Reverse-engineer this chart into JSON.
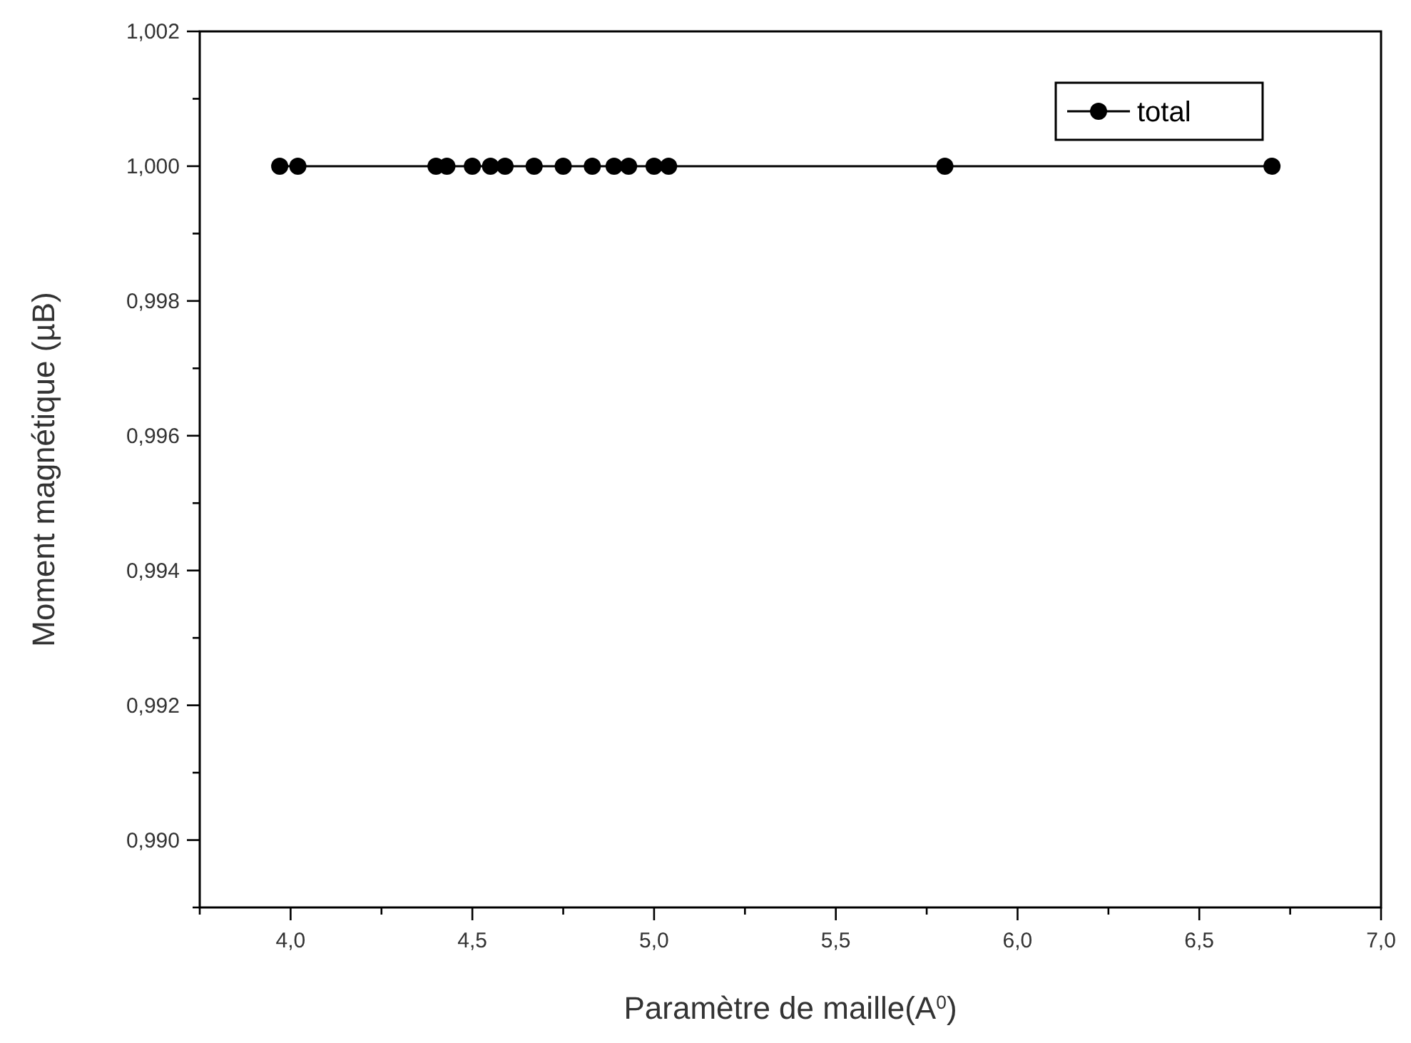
{
  "chart_data": {
    "type": "line",
    "xlabel": "Paramètre de maille(A$^{0}$)",
    "ylabel": "Moment magnétique (µB)",
    "x": [
      3.97,
      4.02,
      4.4,
      4.43,
      4.5,
      4.55,
      4.59,
      4.67,
      4.75,
      4.83,
      4.89,
      4.93,
      5.0,
      5.04,
      5.8,
      6.7
    ],
    "series": [
      {
        "name": "total",
        "color": "#000000",
        "values": [
          1,
          1,
          1,
          1,
          1,
          1,
          1,
          1,
          1,
          1,
          1,
          1,
          1,
          1,
          1,
          1
        ]
      }
    ],
    "xlim": [
      3.75,
      7.0
    ],
    "xticks": [
      {
        "value": 3.75,
        "label": null
      },
      {
        "value": 4.0,
        "label": "4,0"
      },
      {
        "value": 4.25,
        "label": null
      },
      {
        "value": 4.5,
        "label": "4,5"
      },
      {
        "value": 4.75,
        "label": null
      },
      {
        "value": 5.0,
        "label": "5,0"
      },
      {
        "value": 5.25,
        "label": null
      },
      {
        "value": 5.5,
        "label": "5,5"
      },
      {
        "value": 5.75,
        "label": null
      },
      {
        "value": 6.0,
        "label": "6,0"
      },
      {
        "value": 6.25,
        "label": null
      },
      {
        "value": 6.5,
        "label": "6,5"
      },
      {
        "value": 6.75,
        "label": null
      },
      {
        "value": 7.0,
        "label": "7,0"
      }
    ],
    "ylim": [
      0.989,
      1.002
    ],
    "yticks": [
      {
        "value": 0.989,
        "label": null
      },
      {
        "value": 0.99,
        "label": "0,990"
      },
      {
        "value": 0.991,
        "label": null
      },
      {
        "value": 0.992,
        "label": "0,992"
      },
      {
        "value": 0.993,
        "label": null
      },
      {
        "value": 0.994,
        "label": "0,994"
      },
      {
        "value": 0.995,
        "label": null
      },
      {
        "value": 0.996,
        "label": "0,996"
      },
      {
        "value": 0.997,
        "label": null
      },
      {
        "value": 0.998,
        "label": "0,998"
      },
      {
        "value": 0.999,
        "label": null
      },
      {
        "value": 1.0,
        "label": "1,000"
      },
      {
        "value": 1.001,
        "label": null
      },
      {
        "value": 1.002,
        "label": "1,002"
      }
    ],
    "grid": false,
    "legend": "top right",
    "marker": "circle",
    "line_style": "solid"
  }
}
